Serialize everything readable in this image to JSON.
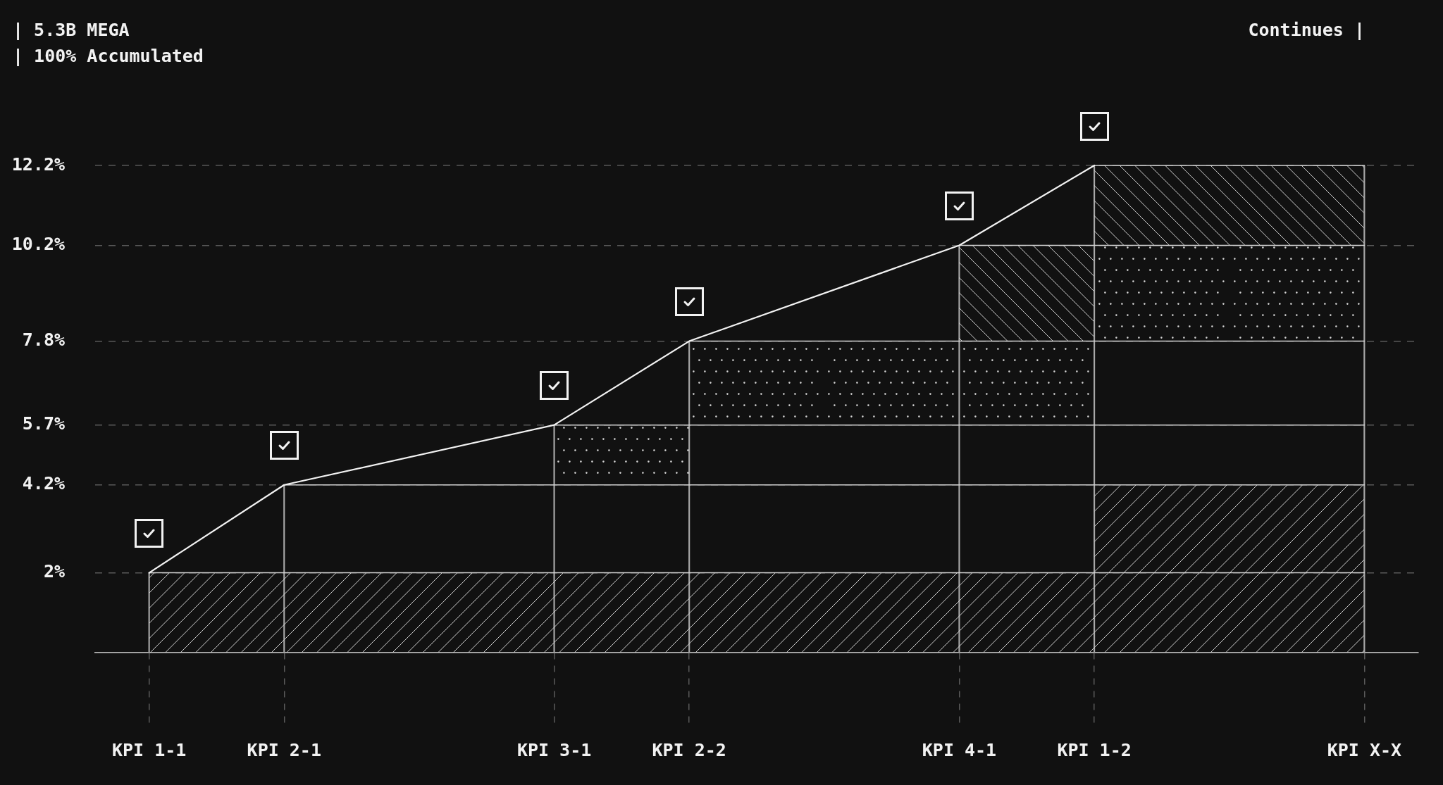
{
  "chart_data": {
    "type": "line",
    "title": "| 5.3B MEGA",
    "subtitle": "| 100% Accumulated",
    "annotations": [
      "Continues |"
    ],
    "categories": [
      "KPI 1-1",
      "KPI 2-1",
      null,
      "KPI 3-1",
      "KPI 2-2",
      null,
      "KPI 4-1",
      "KPI 1-2",
      null,
      "KPI X-X"
    ],
    "ylim": [
      0,
      12.2
    ],
    "yticks": [
      {
        "value": 2,
        "label": "2%"
      },
      {
        "value": 4.2,
        "label": "4.2%"
      },
      {
        "value": 5.7,
        "label": "5.7%"
      },
      {
        "value": 7.8,
        "label": "7.8%"
      },
      {
        "value": 10.2,
        "label": "10.2%"
      },
      {
        "value": 12.2,
        "label": "12.2%"
      }
    ],
    "grid": "y",
    "series": [
      {
        "color": "#f2f2f2",
        "values": [
          2,
          4.2,
          null,
          5.7,
          7.8,
          null,
          10.2,
          12.2,
          null,
          null
        ]
      },
      {
        "color": "#d4d4d4",
        "values": [
          2,
          2,
          2,
          2,
          2,
          2,
          2,
          2,
          2,
          2
        ]
      },
      {
        "color": "#d4d4d4",
        "values": [
          null,
          4.2,
          4.2,
          4.2,
          4.2,
          4.2,
          4.2,
          4.2,
          4.2,
          4.2
        ]
      },
      {
        "color": "#d4d4d4",
        "values": [
          null,
          null,
          null,
          5.7,
          5.7,
          5.7,
          5.7,
          5.7,
          5.7,
          5.7
        ]
      },
      {
        "color": "#d4d4d4",
        "values": [
          null,
          null,
          null,
          null,
          7.8,
          7.8,
          7.8,
          7.8,
          7.8,
          7.8
        ]
      },
      {
        "color": "#d4d4d4",
        "values": [
          null,
          null,
          null,
          null,
          null,
          null,
          10.2,
          10.2,
          10.2,
          10.2
        ]
      },
      {
        "color": "#d4d4d4",
        "values": [
          null,
          null,
          null,
          null,
          null,
          null,
          null,
          12.2,
          12.2,
          12.2
        ]
      },
      {
        "type": "bar",
        "color": "#a8a8a8",
        "values": [
          2,
          4.2,
          null,
          5.7,
          7.8,
          null,
          10.2,
          12.2,
          null,
          12.2
        ]
      }
    ]
  }
}
